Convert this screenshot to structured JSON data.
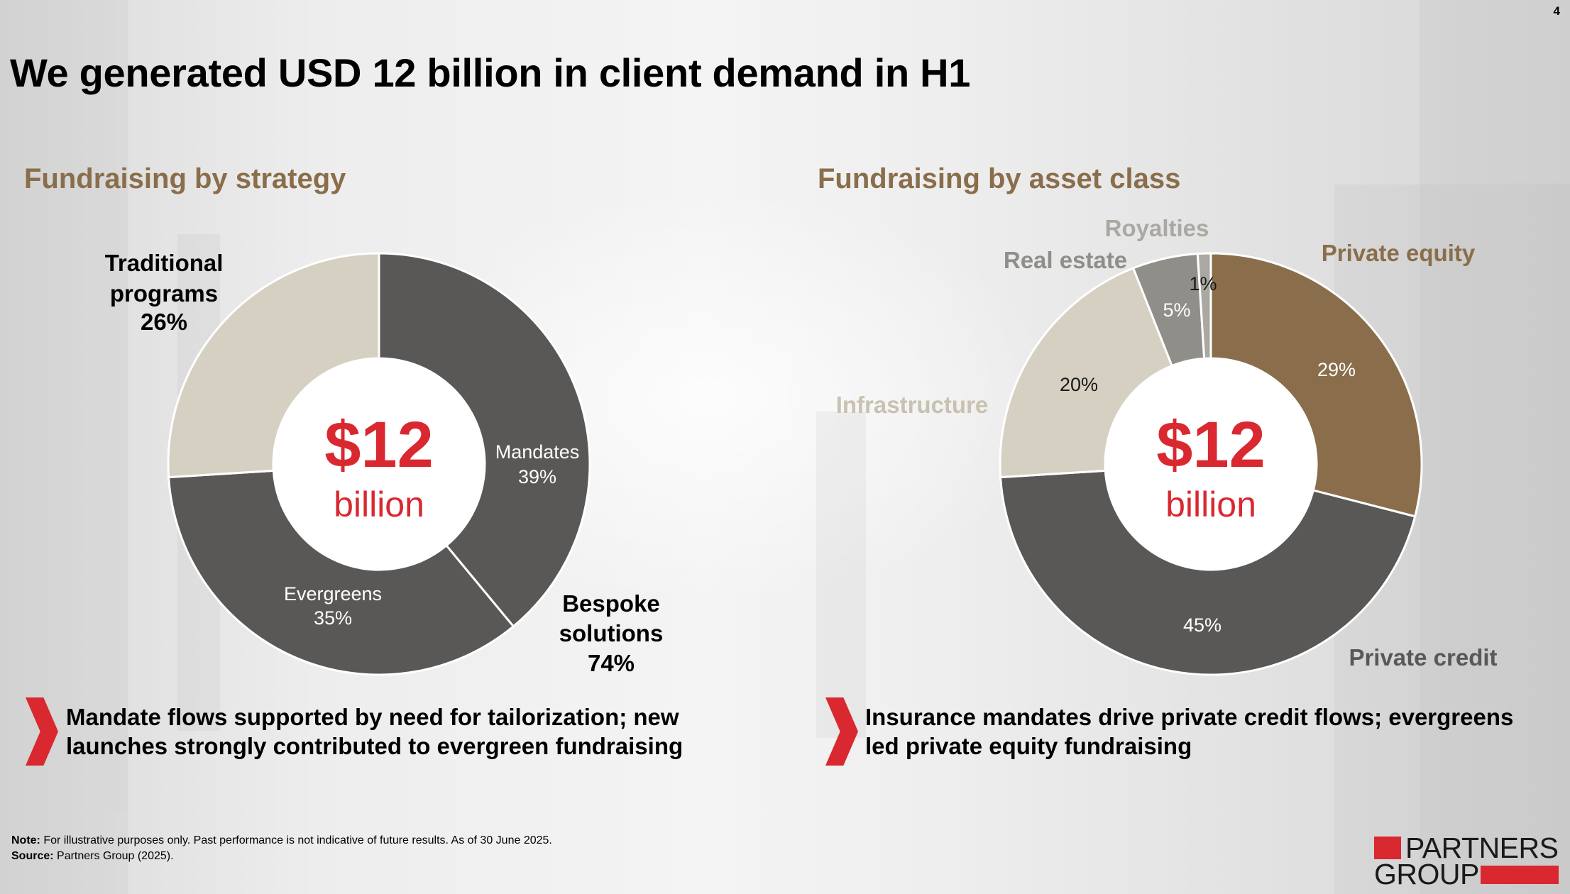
{
  "page": {
    "number": "4",
    "title": "We generated USD 12 billion in client demand in H1"
  },
  "chart_data": [
    {
      "type": "pie",
      "donut": true,
      "title": "Fundraising by strategy",
      "center_value": "$12",
      "center_unit": "billion",
      "slices": [
        {
          "name": "Mandates",
          "value": 39,
          "label": "39%",
          "color": "#5a5857"
        },
        {
          "name": "Evergreens",
          "value": 35,
          "label": "35%",
          "color": "#5a5857"
        },
        {
          "name": "Traditional programs",
          "value": 26,
          "label": "26%",
          "color": "#d6d0c3"
        }
      ],
      "group_annotations": [
        {
          "line1": "Bespoke",
          "line2": "solutions",
          "value": "74%"
        },
        {
          "line1": "Traditional",
          "line2": "programs",
          "value": "26%"
        }
      ]
    },
    {
      "type": "pie",
      "donut": true,
      "title": "Fundraising by asset class",
      "center_value": "$12",
      "center_unit": "billion",
      "slices": [
        {
          "name": "Private equity",
          "value": 29,
          "label": "29%",
          "color": "#8a6e4b"
        },
        {
          "name": "Private credit",
          "value": 45,
          "label": "45%",
          "color": "#5a5857"
        },
        {
          "name": "Infrastructure",
          "value": 20,
          "label": "20%",
          "color": "#d6d0c3"
        },
        {
          "name": "Real estate",
          "value": 5,
          "label": "5%",
          "color": "#8f8e88"
        },
        {
          "name": "Royalties",
          "value": 1,
          "label": "1%",
          "color": "#aaa8a2"
        }
      ]
    }
  ],
  "takeaways": {
    "left": {
      "line1": "Mandate flows supported by need for tailorization; new",
      "line2": "launches strongly contributed to evergreen fundraising"
    },
    "right": {
      "line1": "Insurance mandates drive private credit flows; evergreens",
      "line2": "led private equity fundraising"
    }
  },
  "footnotes": {
    "note_label": "Note:",
    "note_text": " For illustrative purposes only. Past performance is not indicative of future results. As of 30 June 2025.",
    "source_label": "Source:",
    "source_text": " Partners Group (2025)."
  },
  "logo": {
    "line1": "PARTNERS",
    "line2": "GROUP"
  },
  "colors": {
    "accent": "#d9282f",
    "section_title": "#8a6e4b",
    "dark": "#5a5857"
  }
}
